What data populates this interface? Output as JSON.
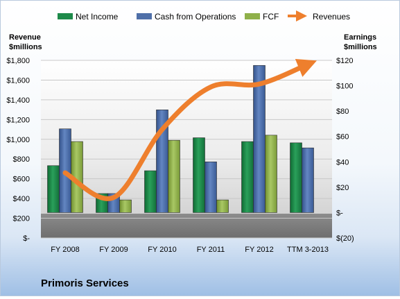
{
  "chart_data": {
    "type": "bar",
    "categories": [
      "FY 2008",
      "FY 2009",
      "FY 2010",
      "FY 2011",
      "FY 2012",
      "TTM 3-2013"
    ],
    "series": [
      {
        "name": "Net Income",
        "axis": "right",
        "color": "#1e8a4a",
        "values": [
          37,
          15,
          33,
          59,
          56,
          55
        ]
      },
      {
        "name": "Cash from Operations",
        "axis": "right",
        "color": "#4f6fa8",
        "values": [
          66,
          15,
          81,
          40,
          116,
          51
        ]
      },
      {
        "name": "FCF",
        "axis": "right",
        "color": "#8fb04a",
        "values": [
          56,
          10,
          57,
          10,
          61,
          0
        ]
      }
    ],
    "line_series": {
      "name": "Revenues",
      "axis": "left",
      "color": "#ee7f2d",
      "values": [
        660,
        410,
        1100,
        1530,
        1560,
        1760
      ]
    },
    "left_axis": {
      "title_line1": "Revenue",
      "title_line2": "$millions",
      "min": 0,
      "max": 1800,
      "step": 200,
      "tick_labels": [
        "$-",
        "$200",
        "$400",
        "$600",
        "$800",
        "$1,000",
        "$1,200",
        "$1,400",
        "$1,600",
        "$1,800"
      ]
    },
    "right_axis": {
      "title_line1": "Earnings",
      "title_line2": "$millions",
      "min": -20,
      "max": 120,
      "step": 20,
      "tick_labels": [
        "$(20)",
        "$-",
        "$20",
        "$40",
        "$60",
        "$80",
        "$100",
        "$120"
      ]
    },
    "grid": true,
    "legend_position": "top",
    "company": "Primoris Services"
  }
}
